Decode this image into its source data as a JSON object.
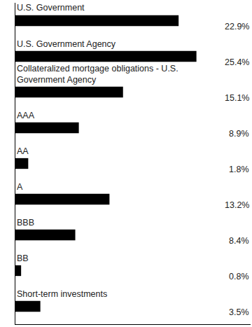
{
  "chart_data": {
    "type": "bar",
    "orientation": "horizontal",
    "categories": [
      "U.S. Government",
      "U.S. Government Agency",
      "Collateralized mortgage obligations - U.S. Government Agency",
      "AAA",
      "AA",
      "A",
      "BBB",
      "BB",
      "Short-term investments"
    ],
    "values": [
      22.9,
      25.4,
      15.1,
      8.9,
      1.8,
      13.2,
      8.4,
      0.8,
      3.5
    ],
    "value_labels": [
      "22.9%",
      "25.4%",
      "15.1%",
      "8.9%",
      "1.8%",
      "13.2%",
      "8.4%",
      "0.8%",
      "3.5%"
    ],
    "data_labels": true,
    "color": "#000000",
    "xlim": [
      0,
      33
    ],
    "tick_labels": false,
    "grid": false
  }
}
